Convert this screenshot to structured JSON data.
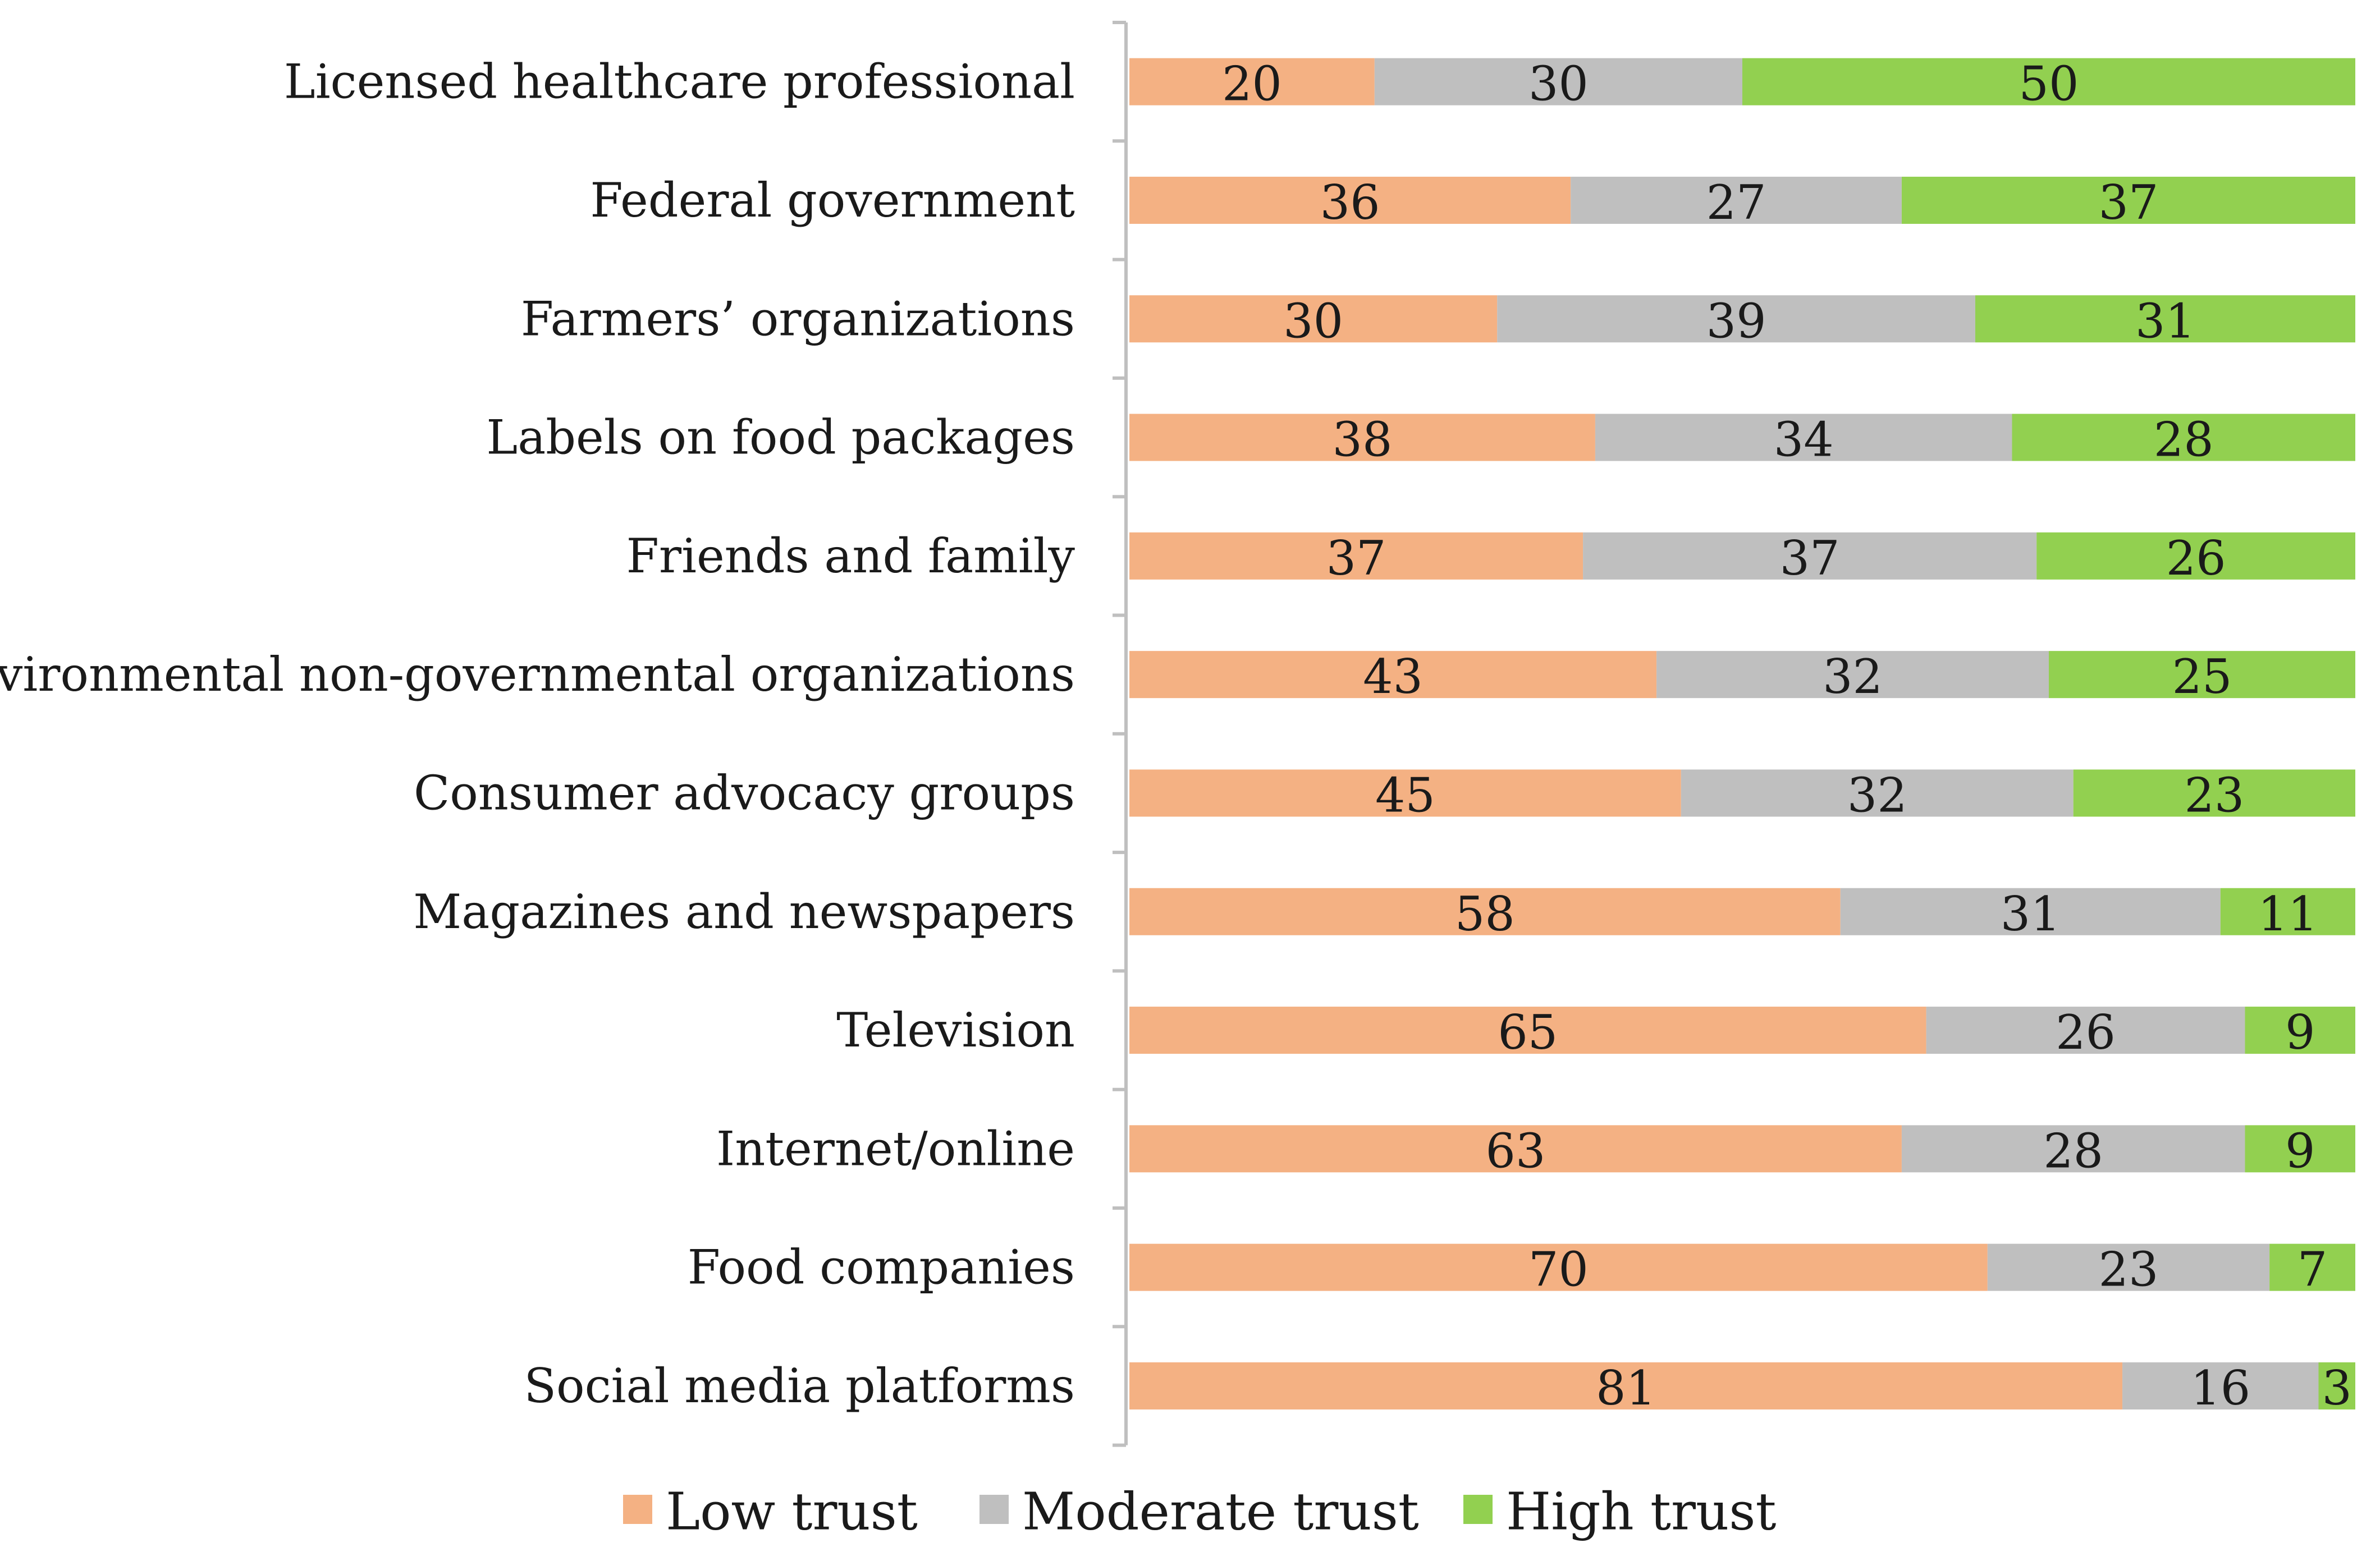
{
  "chart_data": {
    "type": "bar",
    "orientation": "horizontal",
    "stacked": true,
    "title": "",
    "xlabel": "",
    "ylabel": "",
    "xlim": [
      0,
      100
    ],
    "grid": false,
    "legend_position": "bottom",
    "categories": [
      "Licensed healthcare professional",
      "Federal government",
      "Farmers’ organizations",
      "Labels on food packages",
      "Friends and family",
      "Environmental non-governmental organizations",
      "Consumer advocacy groups",
      "Magazines and newspapers",
      "Television",
      "Internet/online",
      "Food companies",
      "Social media platforms"
    ],
    "series": [
      {
        "name": "Low trust",
        "color": "#f4b183",
        "label_color": "#1a1a1a",
        "values": [
          20,
          36,
          30,
          38,
          37,
          43,
          45,
          58,
          65,
          63,
          70,
          81
        ]
      },
      {
        "name": "Moderate trust",
        "color": "#bfbfbf",
        "label_color": "#1a1a1a",
        "values": [
          30,
          27,
          39,
          34,
          37,
          32,
          32,
          31,
          26,
          28,
          23,
          16
        ]
      },
      {
        "name": "High trust",
        "color": "#92d050",
        "label_color": "#1a1a1a",
        "values": [
          50,
          37,
          31,
          28,
          26,
          25,
          23,
          11,
          9,
          9,
          7,
          3
        ]
      }
    ]
  }
}
